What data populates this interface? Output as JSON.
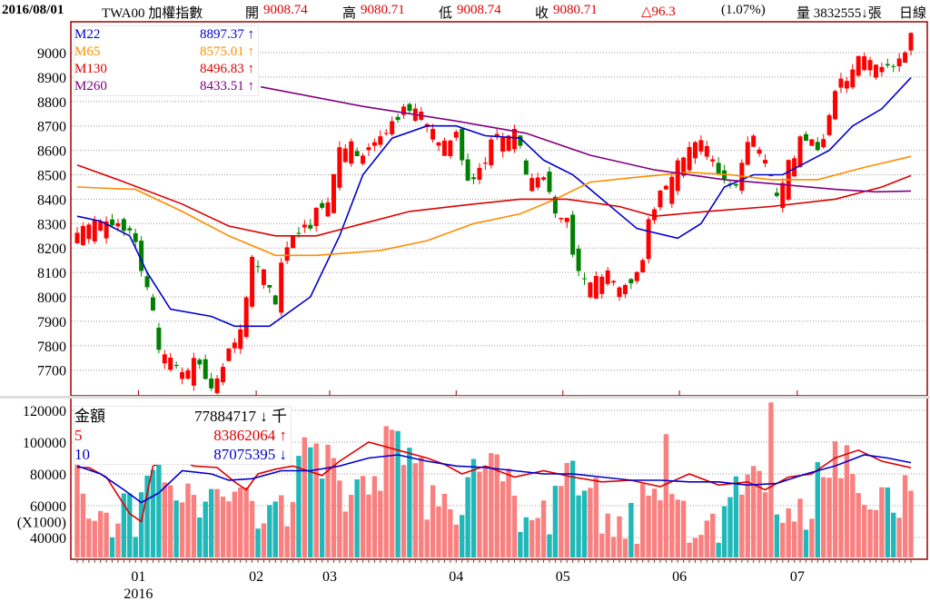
{
  "header": {
    "date": "2016/08/01",
    "symbol": "TWA00 加權指數",
    "open_label": "開",
    "open": "9008.74",
    "high_label": "高",
    "high": "9080.71",
    "low_label": "低",
    "low": "9008.74",
    "close_label": "收",
    "close": "9080.71",
    "change": "△96.3",
    "change_pct": "(1.07%)",
    "volume": "量 3832555↓張",
    "period": "日線"
  },
  "price_legend": [
    {
      "name": "M22",
      "value": "8897.37 ↑",
      "color": "#0000cc"
    },
    {
      "name": "M65",
      "value": "8575.01 ↑",
      "color": "#ff8c00"
    },
    {
      "name": "M130",
      "value": "8496.83 ↑",
      "color": "#dd0000"
    },
    {
      "name": "M260",
      "value": "8433.51 ↑",
      "color": "#800080"
    }
  ],
  "volume_legend": [
    {
      "name": "金額",
      "value": "77884717 ↓ 千",
      "color": "#000000"
    },
    {
      "name": "5",
      "value": "83862064 ↑",
      "color": "#dd0000"
    },
    {
      "name": "10",
      "value": "87075395 ↓",
      "color": "#0000cc"
    }
  ],
  "chart_data": {
    "type": "candlestick",
    "days": 144,
    "price_axis": {
      "ticks": [
        9000,
        8900,
        8800,
        8700,
        8600,
        8500,
        8400,
        8300,
        8200,
        8100,
        8000,
        7900,
        7800,
        7700
      ]
    },
    "volume_axis": {
      "ticks": [
        120000,
        100000,
        80000,
        60000,
        40000
      ],
      "unit_label": "(X1000)"
    },
    "x_ticks": [
      {
        "day": 10.5,
        "label": "01",
        "year": "2016"
      },
      {
        "day": 30.7,
        "label": "02"
      },
      {
        "day": 43.3,
        "label": "03"
      },
      {
        "day": 65,
        "label": "04"
      },
      {
        "day": 83.3,
        "label": "05"
      },
      {
        "day": 103.3,
        "label": "06"
      },
      {
        "day": 123.5,
        "label": "07"
      }
    ],
    "close_path": [
      [
        0,
        8250
      ],
      [
        2,
        8300
      ],
      [
        5,
        8350
      ],
      [
        9,
        8320
      ],
      [
        10,
        8250
      ],
      [
        11,
        8100
      ],
      [
        13,
        7950
      ],
      [
        14,
        7800
      ],
      [
        16,
        7750
      ],
      [
        18,
        7700
      ],
      [
        20,
        7800
      ],
      [
        23,
        7680
      ],
      [
        26,
        7800
      ],
      [
        28,
        7850
      ],
      [
        29,
        8000
      ],
      [
        30,
        8150
      ],
      [
        32,
        8100
      ],
      [
        34,
        8000
      ],
      [
        35,
        8200
      ],
      [
        37,
        8300
      ],
      [
        40,
        8330
      ],
      [
        43,
        8400
      ],
      [
        45,
        8600
      ],
      [
        47,
        8650
      ],
      [
        49,
        8620
      ],
      [
        52,
        8700
      ],
      [
        55,
        8780
      ],
      [
        59,
        8750
      ],
      [
        62,
        8650
      ],
      [
        65,
        8720
      ],
      [
        67,
        8500
      ],
      [
        69,
        8550
      ],
      [
        71,
        8650
      ],
      [
        73,
        8650
      ],
      [
        75,
        8700
      ],
      [
        77,
        8500
      ],
      [
        80,
        8520
      ],
      [
        82,
        8400
      ],
      [
        84,
        8350
      ],
      [
        85,
        8200
      ],
      [
        86,
        8100
      ],
      [
        88,
        8050
      ],
      [
        91,
        8100
      ],
      [
        92,
        8050
      ],
      [
        95,
        8100
      ],
      [
        97,
        8200
      ],
      [
        98,
        8350
      ],
      [
        101,
        8450
      ],
      [
        103,
        8550
      ],
      [
        105,
        8600
      ],
      [
        108,
        8650
      ],
      [
        110,
        8550
      ],
      [
        113,
        8500
      ],
      [
        114,
        8600
      ],
      [
        116,
        8650
      ],
      [
        119,
        8500
      ],
      [
        120,
        8400
      ],
      [
        122,
        8550
      ],
      [
        124,
        8700
      ],
      [
        127,
        8650
      ],
      [
        128,
        8700
      ],
      [
        130,
        8850
      ],
      [
        132,
        8900
      ],
      [
        134,
        9000
      ],
      [
        136,
        8950
      ],
      [
        138,
        9000
      ],
      [
        141,
        9000
      ],
      [
        143,
        9080.71
      ]
    ],
    "ma_series": [
      {
        "name": "M22",
        "color": "#0000cc",
        "points": [
          [
            0,
            8330
          ],
          [
            4,
            8310
          ],
          [
            9,
            8250
          ],
          [
            12,
            8100
          ],
          [
            16,
            7950
          ],
          [
            23,
            7920
          ],
          [
            27,
            7880
          ],
          [
            33,
            7880
          ],
          [
            40,
            8000
          ],
          [
            45,
            8250
          ],
          [
            49,
            8500
          ],
          [
            54,
            8650
          ],
          [
            60,
            8700
          ],
          [
            65,
            8700
          ],
          [
            70,
            8660
          ],
          [
            76,
            8650
          ],
          [
            80,
            8560
          ],
          [
            85,
            8500
          ],
          [
            90,
            8400
          ],
          [
            96,
            8280
          ],
          [
            103,
            8240
          ],
          [
            107,
            8300
          ],
          [
            111,
            8450
          ],
          [
            116,
            8500
          ],
          [
            121,
            8500
          ],
          [
            125,
            8550
          ],
          [
            129,
            8600
          ],
          [
            133,
            8700
          ],
          [
            138,
            8770
          ],
          [
            143,
            8897.37
          ]
        ]
      },
      {
        "name": "M65",
        "color": "#ff8c00",
        "points": [
          [
            0,
            8450
          ],
          [
            10,
            8440
          ],
          [
            18,
            8350
          ],
          [
            26,
            8250
          ],
          [
            34,
            8170
          ],
          [
            41,
            8170
          ],
          [
            52,
            8190
          ],
          [
            60,
            8230
          ],
          [
            68,
            8300
          ],
          [
            76,
            8340
          ],
          [
            82,
            8400
          ],
          [
            88,
            8470
          ],
          [
            96,
            8490
          ],
          [
            105,
            8510
          ],
          [
            112,
            8500
          ],
          [
            119,
            8480
          ],
          [
            127,
            8480
          ],
          [
            135,
            8530
          ],
          [
            143,
            8575.01
          ]
        ]
      },
      {
        "name": "M130",
        "color": "#dd0000",
        "points": [
          [
            0,
            8540
          ],
          [
            7,
            8480
          ],
          [
            18,
            8380
          ],
          [
            26,
            8290
          ],
          [
            34,
            8250
          ],
          [
            41,
            8250
          ],
          [
            49,
            8300
          ],
          [
            57,
            8350
          ],
          [
            68,
            8380
          ],
          [
            76,
            8400
          ],
          [
            84,
            8400
          ],
          [
            93,
            8370
          ],
          [
            99,
            8330
          ],
          [
            108,
            8350
          ],
          [
            119,
            8370
          ],
          [
            130,
            8400
          ],
          [
            138,
            8450
          ],
          [
            143,
            8496.83
          ]
        ]
      },
      {
        "name": "M260",
        "color": "#800080",
        "points": [
          [
            31.5,
            8860
          ],
          [
            49,
            8780
          ],
          [
            65,
            8720
          ],
          [
            77,
            8670
          ],
          [
            88,
            8580
          ],
          [
            99,
            8520
          ],
          [
            111,
            8480
          ],
          [
            121,
            8460
          ],
          [
            130,
            8440
          ],
          [
            137,
            8430
          ],
          [
            143,
            8433.51
          ]
        ]
      }
    ],
    "volume_base": [
      [
        0,
        85000
      ],
      [
        7,
        75000
      ],
      [
        10,
        50000
      ],
      [
        13,
        85000
      ],
      [
        18,
        90000
      ],
      [
        26,
        75000
      ],
      [
        30,
        80000
      ],
      [
        37,
        85000
      ],
      [
        43,
        90000
      ],
      [
        49,
        95000
      ],
      [
        55,
        100000
      ],
      [
        60,
        90000
      ],
      [
        65,
        85000
      ],
      [
        73,
        82000
      ],
      [
        80,
        80000
      ],
      [
        88,
        78000
      ],
      [
        96,
        75000
      ],
      [
        104,
        75000
      ],
      [
        112,
        75000
      ],
      [
        119,
        80000
      ],
      [
        127,
        85000
      ],
      [
        135,
        95000
      ],
      [
        143,
        80000
      ]
    ],
    "volume_spikes": [
      [
        101,
        105000
      ],
      [
        119,
        125000
      ],
      [
        55,
        107000
      ],
      [
        39,
        103000
      ]
    ],
    "volume_ma": [
      {
        "name": "5",
        "color": "#dd0000",
        "points": [
          [
            0,
            84000
          ],
          [
            2,
            84000
          ],
          [
            5,
            78000
          ],
          [
            9,
            55000
          ],
          [
            11,
            50000
          ],
          [
            13,
            85000
          ],
          [
            17,
            90000
          ],
          [
            20,
            85000
          ],
          [
            24,
            84000
          ],
          [
            27,
            75000
          ],
          [
            29,
            70000
          ],
          [
            31,
            80000
          ],
          [
            34,
            83000
          ],
          [
            37,
            85000
          ],
          [
            42,
            79000
          ],
          [
            45,
            88000
          ],
          [
            50,
            100000
          ],
          [
            55,
            95000
          ],
          [
            60,
            90000
          ],
          [
            63,
            86000
          ],
          [
            66,
            80000
          ],
          [
            70,
            85000
          ],
          [
            75,
            78000
          ],
          [
            80,
            82000
          ],
          [
            85,
            78000
          ],
          [
            90,
            75000
          ],
          [
            95,
            76000
          ],
          [
            100,
            72000
          ],
          [
            105,
            80000
          ],
          [
            110,
            73000
          ],
          [
            115,
            75000
          ],
          [
            118,
            70000
          ],
          [
            122,
            78000
          ],
          [
            126,
            80000
          ],
          [
            130,
            90000
          ],
          [
            134,
            95000
          ],
          [
            138,
            88000
          ],
          [
            143,
            83862
          ]
        ]
      },
      {
        "name": "10",
        "color": "#0000cc",
        "points": [
          [
            0,
            85000
          ],
          [
            4,
            80000
          ],
          [
            8,
            70000
          ],
          [
            11,
            62000
          ],
          [
            14,
            68000
          ],
          [
            18,
            82000
          ],
          [
            23,
            80000
          ],
          [
            26,
            76000
          ],
          [
            30,
            77000
          ],
          [
            35,
            82000
          ],
          [
            40,
            82000
          ],
          [
            45,
            85000
          ],
          [
            50,
            90000
          ],
          [
            55,
            92000
          ],
          [
            60,
            88000
          ],
          [
            65,
            85000
          ],
          [
            70,
            84000
          ],
          [
            75,
            82000
          ],
          [
            80,
            80000
          ],
          [
            85,
            80000
          ],
          [
            90,
            78000
          ],
          [
            95,
            76000
          ],
          [
            100,
            76000
          ],
          [
            105,
            75000
          ],
          [
            110,
            75000
          ],
          [
            115,
            73000
          ],
          [
            120,
            74000
          ],
          [
            125,
            80000
          ],
          [
            130,
            85000
          ],
          [
            135,
            92000
          ],
          [
            139,
            90000
          ],
          [
            143,
            87075
          ]
        ]
      }
    ]
  }
}
